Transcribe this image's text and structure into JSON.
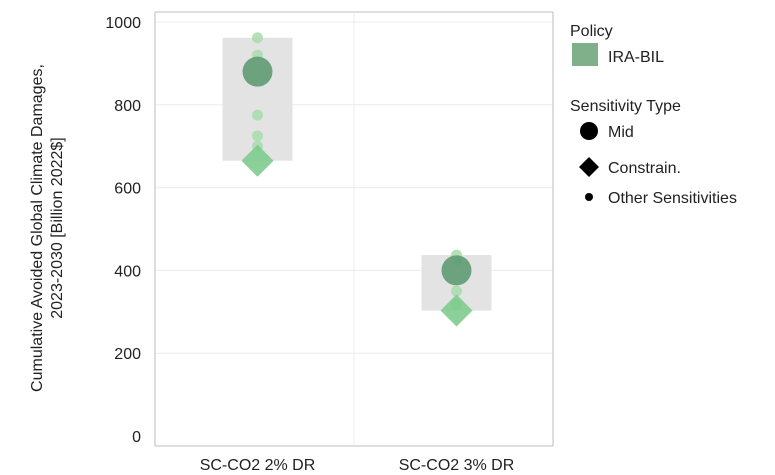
{
  "chart_data": {
    "type": "scatter",
    "title": "",
    "xlabel": "",
    "ylabel_lines": [
      "Cumulative Avoided Global Climate Damages,",
      "2023-2030 [Billion 2022$]"
    ],
    "ylim": [
      0,
      1000
    ],
    "yticks": [
      0,
      200,
      400,
      600,
      800,
      1000
    ],
    "categories": [
      "SC-CO2 2% DR",
      "SC-CO2 3% DR"
    ],
    "grid": true,
    "ranges": [
      {
        "category": "SC-CO2 2% DR",
        "low": 665,
        "high": 962
      },
      {
        "category": "SC-CO2 3% DR",
        "low": 303,
        "high": 437
      }
    ],
    "series": [
      {
        "name": "IRA-BIL",
        "points": [
          {
            "category": "SC-CO2 2% DR",
            "sensitivity": "Mid",
            "value": 880
          },
          {
            "category": "SC-CO2 2% DR",
            "sensitivity": "Constrain.",
            "value": 665
          },
          {
            "category": "SC-CO2 2% DR",
            "sensitivity": "Other Sensitivities",
            "value": 962
          },
          {
            "category": "SC-CO2 2% DR",
            "sensitivity": "Other Sensitivities",
            "value": 920
          },
          {
            "category": "SC-CO2 2% DR",
            "sensitivity": "Other Sensitivities",
            "value": 775
          },
          {
            "category": "SC-CO2 2% DR",
            "sensitivity": "Other Sensitivities",
            "value": 725
          },
          {
            "category": "SC-CO2 2% DR",
            "sensitivity": "Other Sensitivities",
            "value": 700
          },
          {
            "category": "SC-CO2 3% DR",
            "sensitivity": "Mid",
            "value": 400
          },
          {
            "category": "SC-CO2 3% DR",
            "sensitivity": "Constrain.",
            "value": 303
          },
          {
            "category": "SC-CO2 3% DR",
            "sensitivity": "Other Sensitivities",
            "value": 437
          },
          {
            "category": "SC-CO2 3% DR",
            "sensitivity": "Other Sensitivities",
            "value": 425
          },
          {
            "category": "SC-CO2 3% DR",
            "sensitivity": "Other Sensitivities",
            "value": 350
          },
          {
            "category": "SC-CO2 3% DR",
            "sensitivity": "Other Sensitivities",
            "value": 318
          }
        ]
      }
    ],
    "legend": {
      "placement": "right",
      "policy_title": "Policy",
      "policy_items": [
        {
          "label": "IRA-BIL",
          "color": "#7fb08a"
        }
      ],
      "sensitivity_title": "Sensitivity Type",
      "sensitivity_items": [
        {
          "label": "Mid",
          "shape": "circle-large"
        },
        {
          "label": "Constrain.",
          "shape": "diamond"
        },
        {
          "label": "Other Sensitivities",
          "shape": "circle-small"
        }
      ]
    },
    "colors": {
      "range_band": "#e3e3e3",
      "mid": "#5f9a73",
      "constrain": "#7ecb8d",
      "other": "#a8dcac",
      "grid": "#ececec",
      "axis": "#bdbdbd"
    }
  }
}
